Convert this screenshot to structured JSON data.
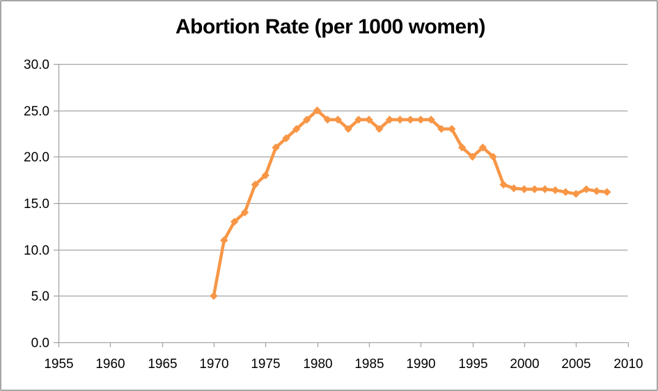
{
  "chart_data": {
    "type": "line",
    "title": "Abortion Rate (per 1000 women)",
    "xlabel": "",
    "ylabel": "",
    "xlim": [
      1955,
      2010
    ],
    "ylim": [
      0,
      30
    ],
    "x_ticks": [
      1955,
      1960,
      1965,
      1970,
      1975,
      1980,
      1985,
      1990,
      1995,
      2000,
      2005,
      2010
    ],
    "x_tick_labels": [
      "1955",
      "1960",
      "1965",
      "1970",
      "1975",
      "1980",
      "1985",
      "1990",
      "1995",
      "2000",
      "2005",
      "2010"
    ],
    "y_ticks": [
      0,
      5,
      10,
      15,
      20,
      25,
      30
    ],
    "y_tick_labels": [
      "0.0",
      "5.0",
      "10.0",
      "15.0",
      "20.0",
      "25.0",
      "30.0"
    ],
    "grid": "horizontal-only",
    "legend": "none",
    "series": [
      {
        "name": "Abortion rate per 1000 women",
        "marker": "diamond",
        "color": "#F79646",
        "x": [
          1970,
          1971,
          1972,
          1973,
          1974,
          1975,
          1976,
          1977,
          1978,
          1979,
          1980,
          1981,
          1982,
          1983,
          1984,
          1985,
          1986,
          1987,
          1988,
          1989,
          1990,
          1991,
          1992,
          1993,
          1994,
          1995,
          1996,
          1997,
          1998,
          1999,
          2000,
          2001,
          2002,
          2003,
          2004,
          2005,
          2006,
          2007,
          2008
        ],
        "values": [
          5.0,
          11.0,
          13.0,
          14.0,
          17.0,
          18.0,
          21.0,
          22.0,
          23.0,
          24.0,
          25.0,
          24.0,
          24.0,
          23.0,
          24.0,
          24.0,
          23.0,
          24.0,
          24.0,
          24.0,
          24.0,
          24.0,
          23.0,
          23.0,
          21.0,
          20.0,
          21.0,
          20.0,
          17.0,
          16.6,
          16.5,
          16.5,
          16.5,
          16.4,
          16.2,
          16.0,
          16.5,
          16.3,
          16.2
        ]
      }
    ],
    "styles": {
      "gridline_color": "#A3A3A3",
      "axis_color": "#A3A3A3",
      "tick_label_color": "#000000",
      "title_color": "#000000",
      "frame_border_color": "#A6A6A6",
      "background": "#FFFFFF"
    }
  }
}
